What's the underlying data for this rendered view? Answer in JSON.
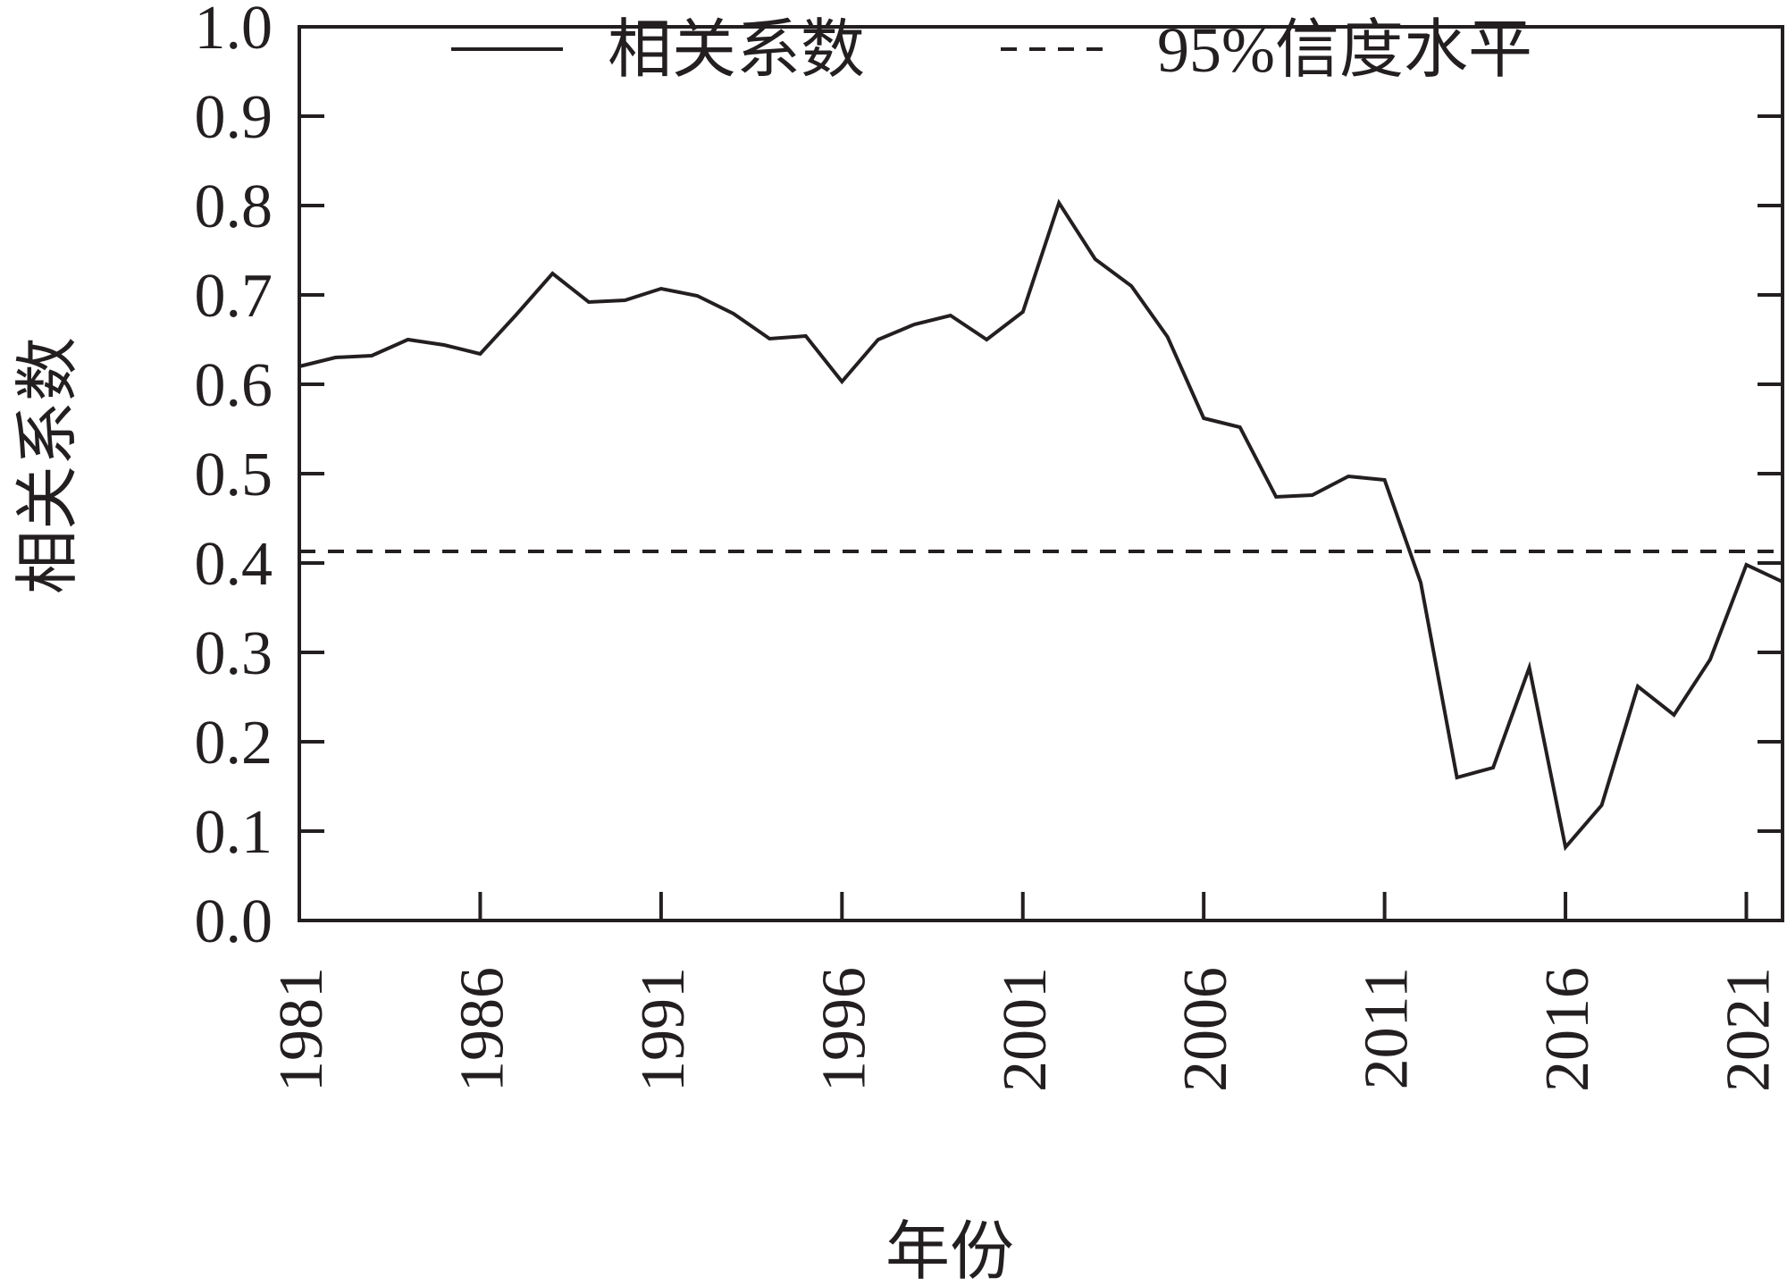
{
  "chart_data": {
    "type": "line",
    "title": "",
    "xlabel": "年份",
    "ylabel": "相关系数",
    "xlim": [
      1981,
      2022
    ],
    "ylim": [
      0.0,
      1.0
    ],
    "x_ticks": [
      "1981",
      "1986",
      "1991",
      "1996",
      "2001",
      "2006",
      "2011",
      "2016",
      "2021"
    ],
    "y_ticks": [
      "0.0",
      "0.1",
      "0.2",
      "0.3",
      "0.4",
      "0.5",
      "0.6",
      "0.7",
      "0.8",
      "0.9",
      "1.0"
    ],
    "legend_position": "top",
    "grid": false,
    "series": [
      {
        "name": "相关系数",
        "style": "solid",
        "color": "#231f20",
        "x": [
          1981,
          1982,
          1983,
          1984,
          1985,
          1986,
          1987,
          1988,
          1989,
          1990,
          1991,
          1992,
          1993,
          1994,
          1995,
          1996,
          1997,
          1998,
          1999,
          2000,
          2001,
          2002,
          2003,
          2004,
          2005,
          2006,
          2007,
          2008,
          2009,
          2010,
          2011,
          2012,
          2013,
          2014,
          2015,
          2016,
          2017,
          2018,
          2019,
          2020,
          2021,
          2022
        ],
        "values": [
          0.62,
          0.63,
          0.632,
          0.65,
          0.644,
          0.634,
          0.678,
          0.724,
          0.692,
          0.694,
          0.707,
          0.699,
          0.679,
          0.651,
          0.654,
          0.603,
          0.65,
          0.667,
          0.677,
          0.65,
          0.681,
          0.803,
          0.74,
          0.71,
          0.653,
          0.562,
          0.552,
          0.474,
          0.476,
          0.497,
          0.493,
          0.378,
          0.16,
          0.171,
          0.283,
          0.082,
          0.129,
          0.262,
          0.23,
          0.292,
          0.398,
          0.379
        ]
      },
      {
        "name": "95%信度水平",
        "style": "dashed",
        "color": "#231f20",
        "x": [
          1981,
          2022
        ],
        "values": [
          0.413,
          0.413
        ]
      }
    ]
  }
}
